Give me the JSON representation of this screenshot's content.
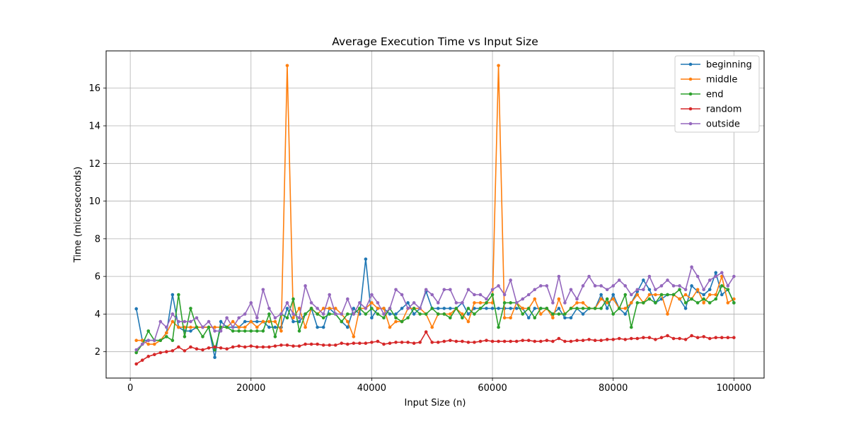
{
  "chart_data": {
    "type": "line",
    "title": "Average Execution Time vs Input Size",
    "xlabel": "Input Size (n)",
    "ylabel": "Time (microseconds)",
    "xlim": [
      -4000,
      105000
    ],
    "ylim": [
      0.6,
      17.98
    ],
    "xticks": [
      0,
      20000,
      40000,
      60000,
      80000,
      100000
    ],
    "yticks": [
      2,
      4,
      6,
      8,
      10,
      12,
      14,
      16
    ],
    "grid": true,
    "legend_position": "top-right",
    "x": [
      1000,
      2000,
      3000,
      4000,
      5000,
      6000,
      7000,
      8000,
      9000,
      10000,
      11000,
      12000,
      13000,
      14000,
      15000,
      16000,
      17000,
      18000,
      19000,
      20000,
      21000,
      22000,
      23000,
      24000,
      25000,
      26000,
      27000,
      28000,
      29000,
      30000,
      31000,
      32000,
      33000,
      34000,
      35000,
      36000,
      37000,
      38000,
      39000,
      40000,
      41000,
      42000,
      43000,
      44000,
      45000,
      46000,
      47000,
      48000,
      49000,
      50000,
      51000,
      52000,
      53000,
      54000,
      55000,
      56000,
      57000,
      58000,
      59000,
      60000,
      61000,
      62000,
      63000,
      64000,
      65000,
      66000,
      67000,
      68000,
      69000,
      70000,
      71000,
      72000,
      73000,
      74000,
      75000,
      76000,
      77000,
      78000,
      79000,
      80000,
      81000,
      82000,
      83000,
      84000,
      85000,
      86000,
      87000,
      88000,
      89000,
      90000,
      91000,
      92000,
      93000,
      94000,
      95000,
      96000,
      97000,
      98000,
      99000,
      100000
    ],
    "series": [
      {
        "name": "beginning",
        "color": "#1f77b4",
        "values": [
          4.28,
          2.6,
          2.6,
          2.6,
          2.6,
          3.0,
          5.03,
          3.3,
          3.1,
          3.1,
          3.3,
          3.3,
          3.3,
          1.7,
          3.6,
          3.3,
          3.3,
          3.3,
          3.6,
          3.6,
          3.6,
          3.6,
          3.3,
          3.3,
          3.3,
          4.3,
          3.6,
          3.6,
          4.0,
          4.3,
          3.3,
          3.3,
          4.3,
          4.0,
          3.6,
          3.3,
          4.3,
          4.0,
          6.92,
          3.8,
          4.3,
          4.3,
          4.0,
          4.0,
          4.3,
          4.6,
          4.0,
          4.3,
          5.2,
          4.3,
          4.3,
          4.3,
          4.3,
          4.3,
          4.6,
          4.0,
          4.3,
          4.3,
          4.3,
          4.3,
          4.3,
          4.3,
          4.3,
          4.3,
          4.3,
          3.8,
          4.3,
          4.3,
          4.3,
          4.0,
          4.3,
          3.8,
          3.8,
          4.3,
          4.0,
          4.3,
          4.3,
          5.03,
          4.3,
          5.03,
          4.3,
          4.0,
          4.6,
          5.2,
          5.8,
          5.3,
          4.6,
          4.8,
          5.03,
          5.03,
          4.8,
          4.3,
          5.5,
          5.2,
          5.03,
          5.3,
          6.2,
          5.03,
          5.3,
          4.6
        ]
      },
      {
        "name": "middle",
        "color": "#ff7f0e",
        "values": [
          2.6,
          2.6,
          2.4,
          2.4,
          2.6,
          3.0,
          3.6,
          3.3,
          3.3,
          3.3,
          3.3,
          3.3,
          3.3,
          3.3,
          3.3,
          3.3,
          3.6,
          3.3,
          3.3,
          3.6,
          3.3,
          3.6,
          3.6,
          3.6,
          3.1,
          17.2,
          3.8,
          4.3,
          3.3,
          4.3,
          4.0,
          4.3,
          4.3,
          4.3,
          4.0,
          3.6,
          2.8,
          4.3,
          4.3,
          4.6,
          4.3,
          4.3,
          3.3,
          3.6,
          3.6,
          4.3,
          4.3,
          4.3,
          4.0,
          3.3,
          4.0,
          4.0,
          4.0,
          4.3,
          4.0,
          3.6,
          4.6,
          4.6,
          4.6,
          4.6,
          17.2,
          3.8,
          3.8,
          4.6,
          4.3,
          4.3,
          4.8,
          4.0,
          4.3,
          3.8,
          4.8,
          4.0,
          4.3,
          4.6,
          4.6,
          4.3,
          4.3,
          4.8,
          4.6,
          4.8,
          4.3,
          4.3,
          4.6,
          5.03,
          4.6,
          5.03,
          5.03,
          5.03,
          4.0,
          5.03,
          4.8,
          5.03,
          4.8,
          5.3,
          4.6,
          5.03,
          5.03,
          6.0,
          4.6,
          4.8
        ]
      },
      {
        "name": "end",
        "color": "#2ca02c",
        "values": [
          1.95,
          2.4,
          3.1,
          2.6,
          2.6,
          2.8,
          2.6,
          5.03,
          2.8,
          4.3,
          3.3,
          2.8,
          3.3,
          2.1,
          3.3,
          3.3,
          3.1,
          3.1,
          3.1,
          3.1,
          3.1,
          3.1,
          4.0,
          2.8,
          4.0,
          3.8,
          4.8,
          3.1,
          4.0,
          4.3,
          4.0,
          3.8,
          4.0,
          4.0,
          3.6,
          4.0,
          4.0,
          4.3,
          4.0,
          4.3,
          4.0,
          3.8,
          4.3,
          3.8,
          3.6,
          3.8,
          4.3,
          4.0,
          4.0,
          4.3,
          4.0,
          4.0,
          3.8,
          4.3,
          3.8,
          4.3,
          4.0,
          4.3,
          4.6,
          5.03,
          3.3,
          4.6,
          4.6,
          4.6,
          4.0,
          4.3,
          3.8,
          4.3,
          4.3,
          4.0,
          4.0,
          4.0,
          4.3,
          4.3,
          4.3,
          4.3,
          4.3,
          4.3,
          4.8,
          4.0,
          4.3,
          5.03,
          3.3,
          4.6,
          4.6,
          4.8,
          4.6,
          5.03,
          5.03,
          5.03,
          5.3,
          4.6,
          4.8,
          4.6,
          4.8,
          4.6,
          4.8,
          5.5,
          5.3,
          4.6
        ]
      },
      {
        "name": "random",
        "color": "#d62728",
        "values": [
          1.35,
          1.55,
          1.75,
          1.85,
          1.95,
          2.0,
          2.05,
          2.25,
          2.05,
          2.25,
          2.15,
          2.1,
          2.2,
          2.25,
          2.2,
          2.15,
          2.25,
          2.3,
          2.25,
          2.3,
          2.25,
          2.25,
          2.25,
          2.3,
          2.35,
          2.35,
          2.3,
          2.3,
          2.4,
          2.4,
          2.4,
          2.35,
          2.35,
          2.35,
          2.45,
          2.4,
          2.45,
          2.45,
          2.45,
          2.5,
          2.55,
          2.4,
          2.45,
          2.5,
          2.5,
          2.5,
          2.45,
          2.5,
          3.05,
          2.5,
          2.5,
          2.55,
          2.6,
          2.55,
          2.55,
          2.5,
          2.5,
          2.55,
          2.6,
          2.55,
          2.55,
          2.55,
          2.55,
          2.55,
          2.6,
          2.6,
          2.55,
          2.55,
          2.6,
          2.55,
          2.7,
          2.55,
          2.55,
          2.6,
          2.6,
          2.65,
          2.6,
          2.6,
          2.65,
          2.65,
          2.7,
          2.65,
          2.7,
          2.7,
          2.75,
          2.75,
          2.65,
          2.75,
          2.85,
          2.7,
          2.7,
          2.65,
          2.85,
          2.75,
          2.8,
          2.7,
          2.75,
          2.75,
          2.75,
          2.75
        ]
      },
      {
        "name": "outside",
        "color": "#9467bd",
        "values": [
          2.1,
          2.4,
          2.6,
          2.6,
          3.6,
          3.3,
          4.0,
          3.6,
          3.6,
          3.6,
          3.8,
          3.3,
          3.6,
          3.1,
          3.1,
          3.8,
          3.3,
          3.8,
          4.0,
          4.6,
          3.8,
          5.3,
          4.3,
          3.8,
          4.0,
          4.6,
          4.0,
          3.8,
          5.5,
          4.6,
          4.3,
          4.0,
          5.03,
          4.0,
          4.0,
          4.8,
          4.0,
          4.6,
          4.3,
          5.03,
          4.6,
          4.0,
          4.3,
          5.3,
          5.03,
          4.3,
          4.6,
          4.3,
          5.3,
          5.03,
          4.6,
          5.3,
          5.3,
          4.6,
          4.6,
          5.3,
          5.03,
          5.03,
          4.8,
          5.3,
          5.5,
          5.03,
          5.8,
          4.6,
          4.8,
          5.03,
          5.3,
          5.5,
          5.5,
          4.6,
          6.0,
          4.6,
          5.3,
          4.8,
          5.5,
          6.0,
          5.5,
          5.5,
          5.3,
          5.5,
          5.8,
          5.5,
          5.03,
          5.3,
          5.3,
          6.0,
          5.3,
          5.5,
          5.8,
          5.5,
          5.5,
          5.3,
          6.5,
          6.0,
          5.3,
          5.8,
          6.0,
          6.2,
          5.5,
          6.0
        ]
      }
    ]
  }
}
